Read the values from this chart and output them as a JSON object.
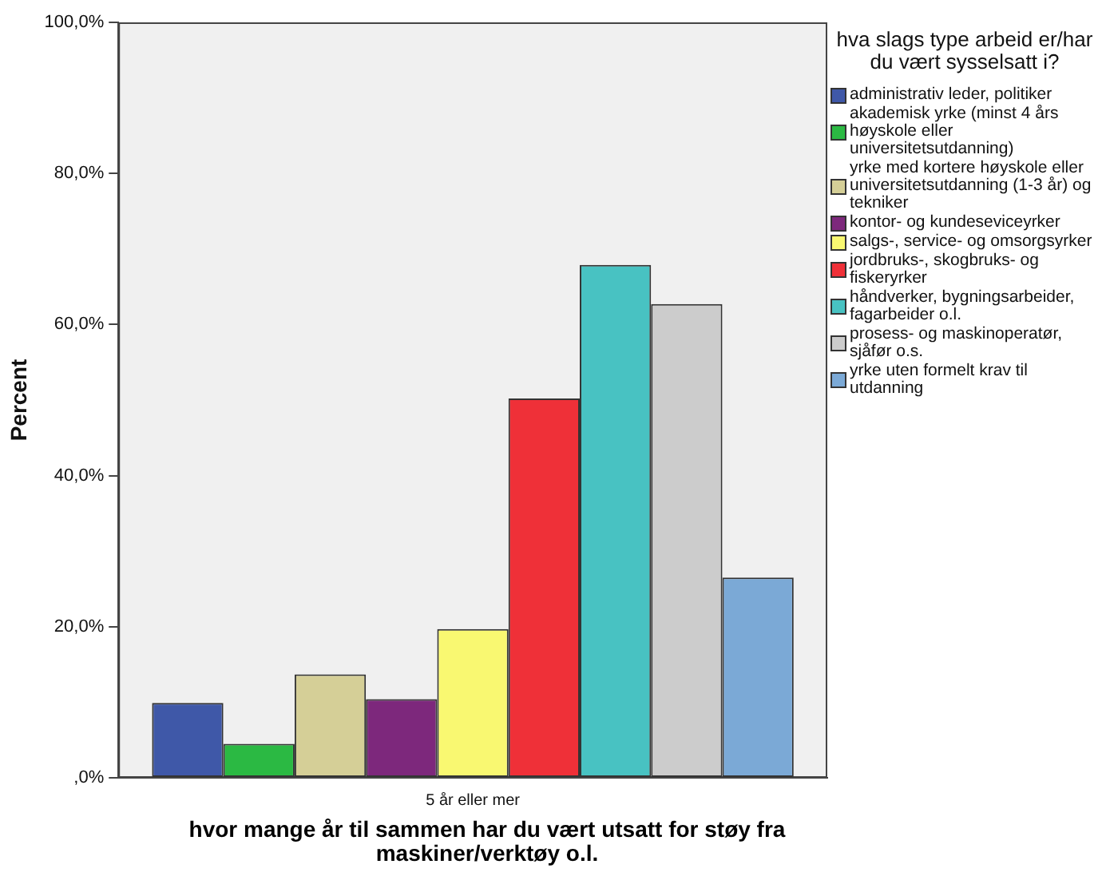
{
  "chart_data": {
    "type": "bar",
    "xlabel": "hvor mange år til sammen har du vært utsatt for støy fra maskiner/verktøy o.l.",
    "ylabel": "Percent",
    "legend_title": "hva slags type arbeid er/har du vært sysselsatt i?",
    "categories": [
      "5 år eller mer"
    ],
    "series": [
      {
        "name": "administrativ leder, politiker",
        "color": "#3f58a8",
        "values": [
          9.9
        ]
      },
      {
        "name": "akademisk yrke (minst 4 års høyskole eller universitetsutdanning)",
        "color": "#2bb943",
        "values": [
          4.5
        ]
      },
      {
        "name": "yrke med kortere høyskole eller universitetsutdanning (1-3 år) og tekniker",
        "color": "#d5cf97",
        "values": [
          13.7
        ]
      },
      {
        "name": "kontor- og kundeseviceyrker",
        "color": "#7d287c",
        "values": [
          10.4
        ]
      },
      {
        "name": "salgs-, service- og omsorgsyrker",
        "color": "#f9f871",
        "values": [
          19.7
        ]
      },
      {
        "name": "jordbruks-, skogbruks- og fiskeryrker",
        "color": "#ef3038",
        "values": [
          50.2
        ]
      },
      {
        "name": "håndverker, bygningsarbeider, fagarbeider o.l.",
        "color": "#48c2c2",
        "values": [
          67.9
        ]
      },
      {
        "name": "prosess- og maskinoperatør, sjåfør o.s.",
        "color": "#cccccc",
        "values": [
          62.7
        ]
      },
      {
        "name": "yrke uten formelt krav til utdanning",
        "color": "#7ba9d6",
        "values": [
          26.5
        ]
      }
    ],
    "ylim": [
      0,
      100
    ],
    "yticks": [
      {
        "value": 0,
        "label": ",0%"
      },
      {
        "value": 20,
        "label": "20,0%"
      },
      {
        "value": 40,
        "label": "40,0%"
      },
      {
        "value": 60,
        "label": "60,0%"
      },
      {
        "value": 80,
        "label": "80,0%"
      },
      {
        "value": 100,
        "label": "100,0%"
      }
    ],
    "grid": false,
    "legend": "right"
  }
}
